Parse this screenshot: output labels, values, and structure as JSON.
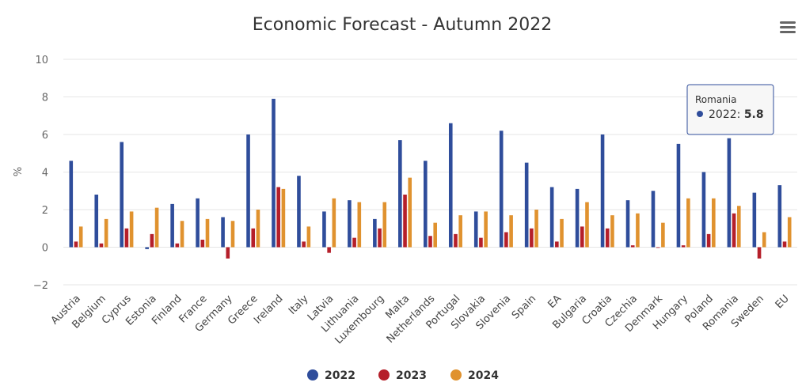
{
  "menu": {
    "icon": "hamburger-menu-icon"
  },
  "chart_data": {
    "type": "bar",
    "title": "Economic Forecast - Autumn 2022",
    "ylabel": "%",
    "xlabel": "",
    "ylim": [
      -2,
      10
    ],
    "yticks": [
      -2,
      0,
      2,
      4,
      6,
      8,
      10
    ],
    "ytick_labels": [
      "−2",
      "0",
      "2",
      "4",
      "6",
      "8",
      "10"
    ],
    "grid": true,
    "legend_position": "bottom-center",
    "categories": [
      "Austria",
      "Belgium",
      "Cyprus",
      "Estonia",
      "Finland",
      "France",
      "Germany",
      "Greece",
      "Ireland",
      "Italy",
      "Latvia",
      "Lithuania",
      "Luxembourg",
      "Malta",
      "Netherlands",
      "Portugal",
      "Slovakia",
      "Slovenia",
      "Spain",
      "EA",
      "Bulgaria",
      "Croatia",
      "Czechia",
      "Denmark",
      "Hungary",
      "Poland",
      "Romania",
      "Sweden",
      "EU"
    ],
    "series": [
      {
        "name": "2022",
        "color": "#2f4d9b",
        "values": [
          4.6,
          2.8,
          5.6,
          -0.1,
          2.3,
          2.6,
          1.6,
          6.0,
          7.9,
          3.8,
          1.9,
          2.5,
          1.5,
          5.7,
          4.6,
          6.6,
          1.9,
          6.2,
          4.5,
          3.2,
          3.1,
          6.0,
          2.5,
          3.0,
          5.5,
          4.0,
          5.8,
          2.9,
          3.3
        ]
      },
      {
        "name": "2023",
        "color": "#b51f2a",
        "values": [
          0.3,
          0.2,
          1.0,
          0.7,
          0.2,
          0.4,
          -0.6,
          1.0,
          3.2,
          0.3,
          -0.3,
          0.5,
          1.0,
          2.8,
          0.6,
          0.7,
          0.5,
          0.8,
          1.0,
          0.3,
          1.1,
          1.0,
          0.1,
          0.0,
          0.1,
          0.7,
          1.8,
          -0.6,
          0.3
        ]
      },
      {
        "name": "2024",
        "color": "#e0922f",
        "values": [
          1.1,
          1.5,
          1.9,
          2.1,
          1.4,
          1.5,
          1.4,
          2.0,
          3.1,
          1.1,
          2.6,
          2.4,
          2.4,
          3.7,
          1.3,
          1.7,
          1.9,
          1.7,
          2.0,
          1.5,
          2.4,
          1.7,
          1.8,
          1.3,
          2.6,
          2.6,
          2.2,
          0.8,
          1.6
        ]
      }
    ],
    "tooltip": {
      "category": "Romania",
      "series_label": "2022",
      "value": "5.8"
    }
  }
}
